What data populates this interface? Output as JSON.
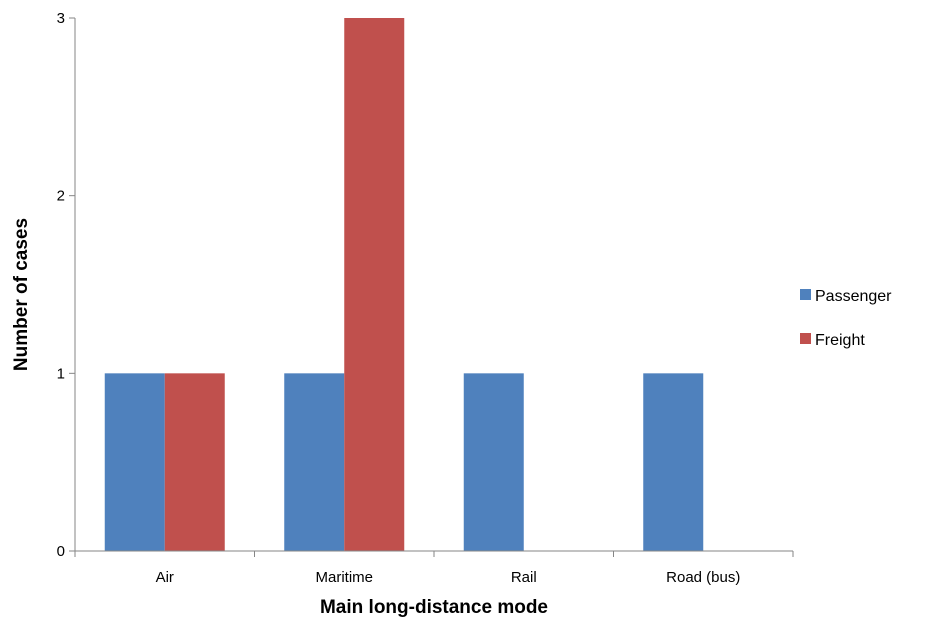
{
  "chart_data": {
    "type": "bar",
    "title": "",
    "xlabel": "Main long-distance mode",
    "ylabel": "Number of cases",
    "categories": [
      "Air",
      "Maritime",
      "Rail",
      "Road (bus)"
    ],
    "series": [
      {
        "name": "Passenger",
        "values": [
          1,
          1,
          1,
          1
        ],
        "color": "#4F81BD"
      },
      {
        "name": "Freight",
        "values": [
          1,
          3,
          0,
          0
        ],
        "color": "#C0504D"
      }
    ],
    "ylim": [
      0,
      3
    ],
    "yticks": [
      "0",
      "1",
      "2",
      "3"
    ],
    "grid": false,
    "legend_position": "right"
  }
}
